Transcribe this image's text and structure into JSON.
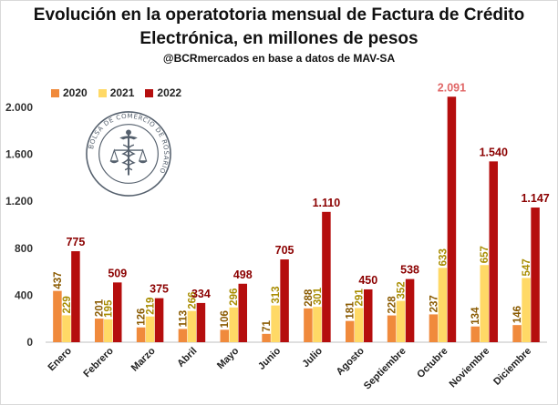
{
  "title_line1": "Evolución en la operatotoria mensual de Factura de Crédito",
  "title_line2": "Electrónica, en millones de pesos",
  "subtitle": "@BCRmercados  en base a datos de MAV-SA",
  "seal_text": "BOLSA DE COMERCIO DE ROSARIO",
  "colors": {
    "2020": "#f08a3c",
    "2021": "#ffd966",
    "2022": "#b50e0e",
    "label_2020": "#8a5a00",
    "label_2021": "#a88c00",
    "label_2022": "#8b0000",
    "highlight": "#e06666"
  },
  "chart_data": {
    "type": "bar",
    "title": "Evolución en la operatotoria mensual de Factura de Crédito Electrónica, en millones de pesos",
    "categories": [
      "Enero",
      "Febrero",
      "Marzo",
      "Abril",
      "Mayo",
      "Junio",
      "Julio",
      "Agosto",
      "Septiembre",
      "Octubre",
      "Noviembre",
      "Diciembre"
    ],
    "series": [
      {
        "name": "2020",
        "values": [
          437,
          201,
          126,
          113,
          106,
          71,
          288,
          181,
          228,
          237,
          134,
          146
        ],
        "labels": [
          "437",
          "201",
          "126",
          "113",
          "106",
          "71",
          "288",
          "181",
          "228",
          "237",
          "134",
          "146"
        ]
      },
      {
        "name": "2021",
        "values": [
          229,
          195,
          219,
          266,
          296,
          313,
          301,
          291,
          352,
          633,
          657,
          547
        ],
        "labels": [
          "229",
          "195",
          "219",
          "266",
          "296",
          "313",
          "301",
          "291",
          "352",
          "633",
          "657",
          "547"
        ]
      },
      {
        "name": "2022",
        "values": [
          775,
          509,
          375,
          334,
          498,
          705,
          1110,
          450,
          538,
          2091,
          1540,
          1147
        ],
        "labels": [
          "775",
          "509",
          "375",
          "334",
          "498",
          "705",
          "1.110",
          "450",
          "538",
          "2.091",
          "1.540",
          "1.147"
        ]
      }
    ],
    "yticks": [
      0,
      400,
      800,
      1200,
      1600,
      2000
    ],
    "ytick_labels": [
      "0",
      "400",
      "800",
      "1.200",
      "1.600",
      "2.000"
    ],
    "ylim": [
      0,
      2000
    ],
    "legend": "top-left",
    "grid": false
  }
}
